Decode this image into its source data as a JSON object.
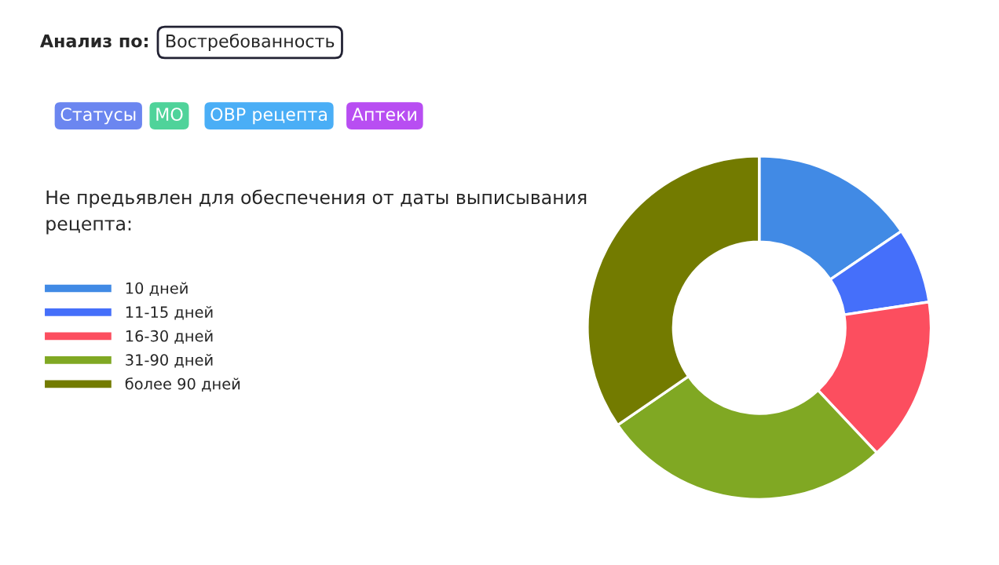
{
  "chart_data": {
    "type": "donut",
    "legend_title": "Не предьявлен для обеспечения от даты выписывания рецепта:",
    "categories": [
      "10 дней",
      "11-15 дней",
      "16-30 дней",
      "31-90 дней",
      "более 90 дней"
    ],
    "values": [
      15.5,
      7.1,
      15.4,
      27.4,
      34.6
    ],
    "colors": [
      "#418ae5",
      "#456ffa",
      "#fc4e5f",
      "#80a823",
      "#737b00"
    ],
    "legend": "left",
    "annotations": [
      "Анализ по:",
      "Востребованность",
      "Статусы",
      "МО",
      "ОВР рецепта",
      "Аптеки"
    ]
  }
}
